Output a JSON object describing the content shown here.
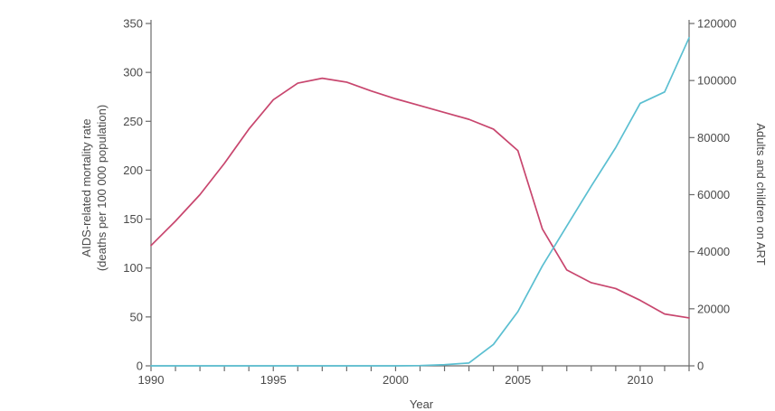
{
  "chart_data": {
    "type": "line",
    "xlabel": "Year",
    "ylabel_left_line1": "AIDS-related mortality rate",
    "ylabel_left_line2": "(deaths per 100 000 population)",
    "ylabel_right": "Adults and children on ART",
    "xlim": [
      1990,
      2012
    ],
    "ylim_left": [
      0,
      350
    ],
    "ylim_right": [
      0,
      120000
    ],
    "x_ticks": [
      1990,
      1991,
      1992,
      1993,
      1994,
      1995,
      1996,
      1997,
      1998,
      1999,
      2000,
      2001,
      2002,
      2003,
      2004,
      2005,
      2006,
      2007,
      2008,
      2009,
      2010,
      2011,
      2012
    ],
    "x_tick_labels": [
      {
        "value": 1990,
        "label": "1990"
      },
      {
        "value": 1995,
        "label": "1995"
      },
      {
        "value": 2000,
        "label": "2000"
      },
      {
        "value": 2005,
        "label": "2005"
      },
      {
        "value": 2010,
        "label": "2010"
      }
    ],
    "y_left_ticks": [
      {
        "value": 0,
        "label": "0"
      },
      {
        "value": 50,
        "label": "50"
      },
      {
        "value": 100,
        "label": "100"
      },
      {
        "value": 150,
        "label": "150"
      },
      {
        "value": 200,
        "label": "200"
      },
      {
        "value": 250,
        "label": "250"
      },
      {
        "value": 300,
        "label": "300"
      },
      {
        "value": 350,
        "label": "350"
      }
    ],
    "y_right_ticks": [
      {
        "value": 0,
        "label": "0"
      },
      {
        "value": 20000,
        "label": "20000"
      },
      {
        "value": 40000,
        "label": "40000"
      },
      {
        "value": 60000,
        "label": "60000"
      },
      {
        "value": 80000,
        "label": "80000"
      },
      {
        "value": 100000,
        "label": "100000"
      },
      {
        "value": 120000,
        "label": "120000"
      }
    ],
    "series": [
      {
        "axis": "left",
        "color": "#c8466e",
        "x": [
          1990,
          1991,
          1992,
          1993,
          1994,
          1995,
          1996,
          1997,
          1998,
          1999,
          2000,
          2001,
          2002,
          2003,
          2004,
          2005,
          2006,
          2007,
          2008,
          2009,
          2010,
          2011,
          2012
        ],
        "y": [
          123,
          148,
          175,
          207,
          242,
          272,
          289,
          294,
          290,
          281,
          273,
          266,
          259,
          252,
          242,
          220,
          140,
          98,
          85,
          79,
          67,
          53,
          49
        ]
      },
      {
        "axis": "right",
        "color": "#5bbfd1",
        "x": [
          1990,
          1991,
          1992,
          1993,
          1994,
          1995,
          1996,
          1997,
          1998,
          1999,
          2000,
          2001,
          2002,
          2003,
          2004,
          2005,
          2006,
          2007,
          2008,
          2009,
          2010,
          2011,
          2012
        ],
        "y": [
          0,
          0,
          0,
          0,
          0,
          0,
          0,
          0,
          0,
          0,
          0,
          100,
          400,
          1000,
          7500,
          19000,
          35000,
          49000,
          63000,
          76500,
          92000,
          96000,
          115000
        ]
      }
    ]
  }
}
